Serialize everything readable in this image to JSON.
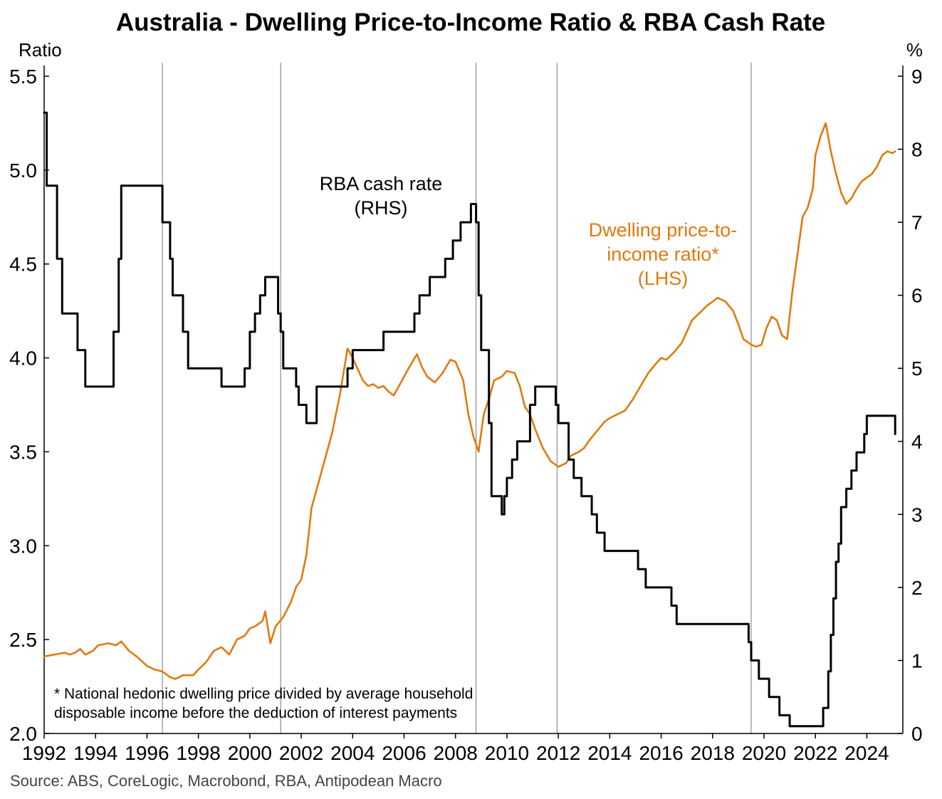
{
  "chart_data": {
    "type": "line",
    "title": "Australia - Dwelling Price-to-Income Ratio & RBA Cash Rate",
    "left_axis": {
      "label": "Ratio",
      "ylim": [
        2.0,
        5.5
      ],
      "ticks": [
        "2.0",
        "2.5",
        "3.0",
        "3.5",
        "4.0",
        "4.5",
        "5.0",
        "5.5"
      ]
    },
    "right_axis": {
      "label": "%",
      "ylim": [
        0,
        9
      ],
      "ticks": [
        "0",
        "1",
        "2",
        "3",
        "4",
        "5",
        "6",
        "7",
        "8",
        "9"
      ]
    },
    "x_axis": {
      "xlim": [
        1992,
        2025.4
      ],
      "ticks": [
        "1992",
        "1994",
        "1996",
        "1998",
        "2000",
        "2002",
        "2004",
        "2006",
        "2008",
        "2010",
        "2012",
        "2014",
        "2016",
        "2018",
        "2020",
        "2022",
        "2024"
      ]
    },
    "vertical_lines": [
      1996.6,
      2001.2,
      2008.8,
      2011.95,
      2019.5
    ],
    "annotations": {
      "cash_rate": [
        "RBA cash rate",
        "(RHS)"
      ],
      "ratio": [
        "Dwelling price-to-",
        "income ratio*",
        "(LHS)"
      ]
    },
    "footnote": [
      "* National hedonic dwelling price divided by average household",
      "disposable income before the deduction of interest payments"
    ],
    "source": "Source: ABS, CoreLogic, Macrobond, RBA, Antipodean Macro",
    "series": [
      {
        "name": "Dwelling price-to-income ratio* (LHS)",
        "axis": "left",
        "color": "#E07A10",
        "x": [
          1992.0,
          1992.4,
          1992.8,
          1993.0,
          1993.2,
          1993.4,
          1993.6,
          1993.9,
          1994.1,
          1994.5,
          1994.8,
          1995.0,
          1995.3,
          1995.6,
          1996.0,
          1996.3,
          1996.6,
          1996.9,
          1997.1,
          1997.4,
          1997.8,
          1998.0,
          1998.3,
          1998.6,
          1998.9,
          1999.2,
          1999.5,
          1999.8,
          2000.0,
          2000.2,
          2000.5,
          2000.6,
          2000.8,
          2001.0,
          2001.3,
          2001.6,
          2001.8,
          2002.0,
          2002.2,
          2002.4,
          2002.6,
          2002.9,
          2003.2,
          2003.5,
          2003.8,
          2004.0,
          2004.2,
          2004.4,
          2004.6,
          2004.8,
          2005.0,
          2005.2,
          2005.4,
          2005.6,
          2005.8,
          2006.0,
          2006.2,
          2006.5,
          2006.7,
          2006.9,
          2007.2,
          2007.5,
          2007.8,
          2008.0,
          2008.3,
          2008.5,
          2008.7,
          2008.9,
          2009.1,
          2009.3,
          2009.5,
          2009.8,
          2010.0,
          2010.3,
          2010.5,
          2010.7,
          2010.9,
          2011.1,
          2011.4,
          2011.7,
          2012.0,
          2012.3,
          2012.5,
          2012.8,
          2013.0,
          2013.2,
          2013.5,
          2013.8,
          2014.0,
          2014.3,
          2014.6,
          2014.9,
          2015.2,
          2015.5,
          2015.8,
          2016.0,
          2016.2,
          2016.5,
          2016.8,
          2017.0,
          2017.2,
          2017.5,
          2017.8,
          2018.0,
          2018.2,
          2018.5,
          2018.8,
          2019.0,
          2019.2,
          2019.5,
          2019.7,
          2019.9,
          2020.1,
          2020.3,
          2020.5,
          2020.7,
          2020.9,
          2021.1,
          2021.3,
          2021.5,
          2021.7,
          2021.9,
          2022.0,
          2022.2,
          2022.4,
          2022.6,
          2022.8,
          2023.0,
          2023.2,
          2023.4,
          2023.6,
          2023.8,
          2024.0,
          2024.2,
          2024.4,
          2024.6,
          2024.8,
          2025.0,
          2025.1
        ],
        "y": [
          2.41,
          2.42,
          2.43,
          2.42,
          2.43,
          2.45,
          2.42,
          2.44,
          2.47,
          2.48,
          2.47,
          2.49,
          2.44,
          2.41,
          2.36,
          2.34,
          2.33,
          2.3,
          2.29,
          2.31,
          2.31,
          2.34,
          2.38,
          2.44,
          2.46,
          2.42,
          2.5,
          2.52,
          2.56,
          2.57,
          2.6,
          2.65,
          2.48,
          2.57,
          2.62,
          2.7,
          2.78,
          2.82,
          2.95,
          3.2,
          3.3,
          3.45,
          3.6,
          3.8,
          4.05,
          4.0,
          3.94,
          3.88,
          3.85,
          3.86,
          3.84,
          3.85,
          3.82,
          3.8,
          3.85,
          3.9,
          3.95,
          4.02,
          3.95,
          3.9,
          3.87,
          3.92,
          3.99,
          3.98,
          3.88,
          3.7,
          3.58,
          3.5,
          3.7,
          3.78,
          3.88,
          3.9,
          3.93,
          3.92,
          3.85,
          3.74,
          3.7,
          3.62,
          3.52,
          3.45,
          3.42,
          3.44,
          3.48,
          3.5,
          3.52,
          3.56,
          3.61,
          3.66,
          3.68,
          3.7,
          3.72,
          3.78,
          3.85,
          3.92,
          3.97,
          4.0,
          3.99,
          4.03,
          4.08,
          4.14,
          4.2,
          4.24,
          4.28,
          4.3,
          4.32,
          4.3,
          4.25,
          4.18,
          4.1,
          4.07,
          4.06,
          4.07,
          4.16,
          4.22,
          4.2,
          4.12,
          4.1,
          4.35,
          4.55,
          4.75,
          4.8,
          4.9,
          5.08,
          5.18,
          5.25,
          5.1,
          4.98,
          4.88,
          4.82,
          4.85,
          4.9,
          4.94,
          4.96,
          4.98,
          5.02,
          5.08,
          5.1,
          5.09,
          5.1
        ]
      },
      {
        "name": "RBA cash rate (RHS)",
        "axis": "right",
        "color": "#000000",
        "step": true,
        "x": [
          1992.0,
          1992.1,
          1992.5,
          1992.7,
          1993.3,
          1993.6,
          1994.7,
          1994.9,
          1995.0,
          1996.6,
          1996.9,
          1997.0,
          1997.4,
          1997.6,
          1998.9,
          1999.8,
          2000.0,
          2000.2,
          2000.4,
          2000.6,
          2001.1,
          2001.2,
          2001.3,
          2001.8,
          2001.9,
          2002.2,
          2002.6,
          2003.8,
          2004.0,
          2005.2,
          2006.4,
          2006.6,
          2007.0,
          2007.6,
          2007.9,
          2008.2,
          2008.6,
          2008.8,
          2008.9,
          2009.0,
          2009.3,
          2009.4,
          2009.8,
          2009.9,
          2010.0,
          2010.2,
          2010.4,
          2010.9,
          2011.1,
          2011.9,
          2012.0,
          2012.4,
          2012.6,
          2012.9,
          2013.3,
          2013.5,
          2013.8,
          2015.1,
          2015.4,
          2016.4,
          2016.6,
          2019.4,
          2019.5,
          2019.8,
          2020.2,
          2020.6,
          2021.0,
          2022.3,
          2022.5,
          2022.6,
          2022.7,
          2022.8,
          2022.9,
          2023.0,
          2023.2,
          2023.4,
          2023.6,
          2023.9,
          2024.0,
          2025.1
        ],
        "y": [
          8.5,
          7.5,
          6.5,
          5.75,
          5.25,
          4.75,
          5.5,
          6.5,
          7.5,
          7.0,
          6.5,
          6.0,
          5.5,
          5.0,
          4.75,
          5.0,
          5.5,
          5.75,
          6.0,
          6.25,
          5.75,
          5.5,
          5.0,
          4.75,
          4.5,
          4.25,
          4.75,
          5.0,
          5.25,
          5.5,
          5.75,
          6.0,
          6.25,
          6.5,
          6.75,
          7.0,
          7.25,
          7.0,
          6.0,
          5.25,
          4.25,
          3.25,
          3.0,
          3.25,
          3.5,
          3.75,
          4.0,
          4.5,
          4.75,
          4.5,
          4.25,
          3.75,
          3.5,
          3.25,
          3.0,
          2.75,
          2.5,
          2.25,
          2.0,
          1.75,
          1.5,
          1.25,
          1.0,
          0.75,
          0.5,
          0.25,
          0.1,
          0.35,
          0.85,
          1.35,
          1.85,
          2.35,
          2.6,
          3.1,
          3.35,
          3.6,
          3.85,
          4.1,
          4.35,
          4.1
        ]
      }
    ]
  }
}
